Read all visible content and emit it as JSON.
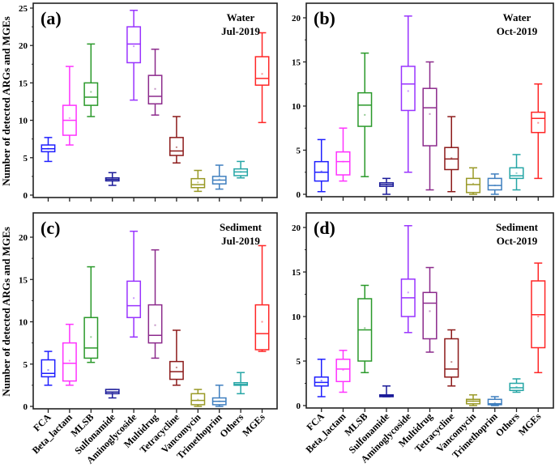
{
  "chart_data": [
    {
      "type": "box",
      "panel": "(a)",
      "title_lines": [
        "Water",
        "Jul-2019"
      ],
      "ylabel": "Number of detected ARGs and MGEs",
      "ylim": [
        0,
        25
      ],
      "yticks": [
        0,
        5,
        10,
        15,
        20,
        25
      ],
      "categories": [
        "FCA",
        "Beta_lactam",
        "MLSB",
        "Sulfonamide",
        "Aminoglycoside",
        "Multidrug",
        "Tetracycline",
        "Vancomycin",
        "Trimethoprim",
        "Others",
        "MGEs"
      ],
      "boxes": [
        {
          "min": 4.5,
          "q1": 5.8,
          "median": 6.2,
          "q3": 6.7,
          "max": 7.7,
          "mean": 6.2
        },
        {
          "min": 6.7,
          "q1": 8.0,
          "median": 10.0,
          "q3": 12.0,
          "max": 17.2,
          "mean": 10.3
        },
        {
          "min": 10.5,
          "q1": 12.0,
          "median": 13.1,
          "q3": 15.0,
          "max": 20.2,
          "mean": 13.8
        },
        {
          "min": 1.3,
          "q1": 1.9,
          "median": 2.1,
          "q3": 2.3,
          "max": 3.0,
          "mean": 2.1
        },
        {
          "min": 12.7,
          "q1": 17.7,
          "median": 20.2,
          "q3": 22.5,
          "max": 24.7,
          "mean": 19.9
        },
        {
          "min": 10.7,
          "q1": 12.2,
          "median": 13.2,
          "q3": 16.0,
          "max": 19.5,
          "mean": 14.2
        },
        {
          "min": 4.3,
          "q1": 5.3,
          "median": 5.9,
          "q3": 7.7,
          "max": 10.5,
          "mean": 6.4
        },
        {
          "min": 0.5,
          "q1": 1.0,
          "median": 1.4,
          "q3": 2.2,
          "max": 3.3,
          "mean": 1.7
        },
        {
          "min": 0.8,
          "q1": 1.5,
          "median": 2.0,
          "q3": 2.5,
          "max": 4.0,
          "mean": 2.1
        },
        {
          "min": 2.3,
          "q1": 2.6,
          "median": 3.1,
          "q3": 3.5,
          "max": 4.5,
          "mean": 3.1
        },
        {
          "min": 9.7,
          "q1": 14.7,
          "median": 15.6,
          "q3": 18.5,
          "max": 21.7,
          "mean": 16.2
        }
      ]
    },
    {
      "type": "box",
      "panel": "(b)",
      "title_lines": [
        "Water",
        "Oct-2019"
      ],
      "ylabel": "",
      "ylim": [
        0,
        21
      ],
      "yticks": [
        0,
        5,
        10,
        15,
        20
      ],
      "categories": [
        "FCA",
        "Beta_lactam",
        "MLSB",
        "Sulfonamide",
        "Aminoglycoside",
        "Multidrug",
        "Tetracycline",
        "Vancomycin",
        "Trimethoprim",
        "Others",
        "MGEs"
      ],
      "boxes": [
        {
          "min": 0.3,
          "q1": 1.5,
          "median": 2.5,
          "q3": 3.7,
          "max": 6.2,
          "mean": 2.6
        },
        {
          "min": 1.5,
          "q1": 2.2,
          "median": 3.7,
          "q3": 4.8,
          "max": 7.5,
          "mean": 3.7
        },
        {
          "min": 2.0,
          "q1": 7.7,
          "median": 10.1,
          "q3": 11.5,
          "max": 16.0,
          "mean": 9.0
        },
        {
          "min": 0.0,
          "q1": 0.9,
          "median": 1.1,
          "q3": 1.3,
          "max": 1.8,
          "mean": 1.1
        },
        {
          "min": 2.5,
          "q1": 9.5,
          "median": 12.5,
          "q3": 14.5,
          "max": 20.2,
          "mean": 11.7
        },
        {
          "min": 0.5,
          "q1": 5.5,
          "median": 9.8,
          "q3": 12.0,
          "max": 15.0,
          "mean": 9.1
        },
        {
          "min": 0.3,
          "q1": 2.8,
          "median": 4.0,
          "q3": 5.3,
          "max": 8.8,
          "mean": 4.1
        },
        {
          "min": 0.0,
          "q1": 0.2,
          "median": 1.1,
          "q3": 1.8,
          "max": 3.0,
          "mean": 1.2
        },
        {
          "min": 0.0,
          "q1": 0.5,
          "median": 1.0,
          "q3": 1.8,
          "max": 2.3,
          "mean": 1.0
        },
        {
          "min": 0.5,
          "q1": 1.8,
          "median": 2.1,
          "q3": 3.0,
          "max": 4.5,
          "mean": 2.4
        },
        {
          "min": 1.8,
          "q1": 7.0,
          "median": 8.6,
          "q3": 9.3,
          "max": 12.5,
          "mean": 8.1
        }
      ]
    },
    {
      "type": "box",
      "panel": "(c)",
      "title_lines": [
        "Sediment",
        "Jul-2019"
      ],
      "ylabel": "Number of detected ARGs and MGEs",
      "ylim": [
        0,
        22
      ],
      "yticks": [
        0,
        5,
        10,
        15,
        20
      ],
      "categories": [
        "FCA",
        "Beta_lactam",
        "MLSB",
        "Sulfonamide",
        "Aminoglycoside",
        "Multidrug",
        "Tetracycline",
        "Vancomycin",
        "Trimethoprim",
        "Others",
        "MGEs"
      ],
      "boxes": [
        {
          "min": 2.5,
          "q1": 3.5,
          "median": 3.9,
          "q3": 5.5,
          "max": 6.5,
          "mean": 4.3
        },
        {
          "min": 2.5,
          "q1": 3.0,
          "median": 5.1,
          "q3": 7.5,
          "max": 9.7,
          "mean": 5.4
        },
        {
          "min": 5.2,
          "q1": 5.7,
          "median": 6.9,
          "q3": 10.5,
          "max": 16.5,
          "mean": 8.2
        },
        {
          "min": 1.0,
          "q1": 1.5,
          "median": 1.7,
          "q3": 2.0,
          "max": 2.0,
          "mean": 1.6
        },
        {
          "min": 8.2,
          "q1": 10.5,
          "median": 11.9,
          "q3": 14.8,
          "max": 20.7,
          "mean": 12.8
        },
        {
          "min": 5.7,
          "q1": 7.5,
          "median": 8.4,
          "q3": 12.0,
          "max": 18.5,
          "mean": 9.6
        },
        {
          "min": 2.5,
          "q1": 3.2,
          "median": 4.1,
          "q3": 5.3,
          "max": 9.0,
          "mean": 4.6
        },
        {
          "min": 0.0,
          "q1": 0.2,
          "median": 0.7,
          "q3": 1.5,
          "max": 2.0,
          "mean": 0.8
        },
        {
          "min": 0.0,
          "q1": 0.2,
          "median": 0.6,
          "q3": 1.0,
          "max": 2.5,
          "mean": 0.6
        },
        {
          "min": 1.5,
          "q1": 2.5,
          "median": 2.6,
          "q3": 2.8,
          "max": 4.0,
          "mean": 2.6
        },
        {
          "min": 6.5,
          "q1": 6.7,
          "median": 8.6,
          "q3": 12.0,
          "max": 19.0,
          "mean": 10.0
        }
      ]
    },
    {
      "type": "box",
      "panel": "(d)",
      "title_lines": [
        "Sediment",
        "Oct-2019"
      ],
      "ylabel": "",
      "ylim": [
        0,
        21.5
      ],
      "yticks": [
        0,
        5,
        10,
        15,
        20
      ],
      "categories": [
        "FCA",
        "Beta_lactam",
        "MLSB",
        "Sulfonamide",
        "Aminoglycoside",
        "Multidrug",
        "Tetracycline",
        "Vancomycin",
        "Trimethoprim",
        "Others",
        "MGEs"
      ],
      "boxes": [
        {
          "min": 1.0,
          "q1": 2.2,
          "median": 2.6,
          "q3": 3.2,
          "max": 5.2,
          "mean": 2.8
        },
        {
          "min": 1.5,
          "q1": 2.7,
          "median": 4.1,
          "q3": 5.2,
          "max": 6.2,
          "mean": 4.0
        },
        {
          "min": 3.7,
          "q1": 5.0,
          "median": 8.5,
          "q3": 12.0,
          "max": 13.5,
          "mean": 8.7
        },
        {
          "min": 1.0,
          "q1": 1.0,
          "median": 1.1,
          "q3": 1.2,
          "max": 2.2,
          "mean": 1.1
        },
        {
          "min": 8.2,
          "q1": 10.0,
          "median": 12.1,
          "q3": 14.2,
          "max": 20.2,
          "mean": 12.7
        },
        {
          "min": 6.0,
          "q1": 7.5,
          "median": 11.5,
          "q3": 12.7,
          "max": 15.5,
          "mean": 10.6
        },
        {
          "min": 2.2,
          "q1": 3.2,
          "median": 4.1,
          "q3": 7.5,
          "max": 8.5,
          "mean": 4.9
        },
        {
          "min": 0.0,
          "q1": 0.2,
          "median": 0.5,
          "q3": 0.7,
          "max": 1.2,
          "mean": 0.5
        },
        {
          "min": 0.0,
          "q1": 0.1,
          "median": 0.2,
          "q3": 0.7,
          "max": 1.0,
          "mean": 0.3
        },
        {
          "min": 1.5,
          "q1": 1.7,
          "median": 2.0,
          "q3": 2.5,
          "max": 3.0,
          "mean": 2.1
        },
        {
          "min": 3.7,
          "q1": 6.5,
          "median": 10.2,
          "q3": 14.0,
          "max": 16.0,
          "mean": 10.0
        }
      ]
    }
  ],
  "colors": [
    "#1f1fff",
    "#ff33ff",
    "#2a992a",
    "#1a1a99",
    "#9933ff",
    "#8c2a8c",
    "#8c1a1a",
    "#999926",
    "#3f7fbf",
    "#26a6a6",
    "#ff2626"
  ],
  "legend": "none"
}
